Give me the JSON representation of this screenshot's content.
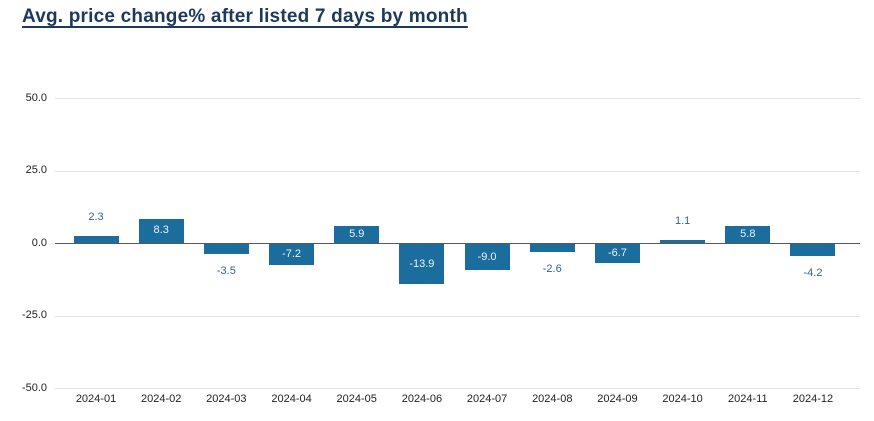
{
  "title": "Avg. price change% after listed 7 days by month",
  "chart_data": {
    "type": "bar",
    "title": "Avg. price change% after listed 7 days by month",
    "categories": [
      "2024-01",
      "2024-02",
      "2024-03",
      "2024-04",
      "2024-05",
      "2024-06",
      "2024-07",
      "2024-08",
      "2024-09",
      "2024-10",
      "2024-11",
      "2024-12"
    ],
    "values": [
      2.3,
      8.3,
      -3.5,
      -7.2,
      5.9,
      -13.9,
      -9.0,
      -2.6,
      -6.7,
      1.1,
      5.8,
      -4.2
    ],
    "value_labels": [
      "2.3",
      "8.3",
      "-3.5",
      "-7.2",
      "5.9",
      "-13.9",
      "-9.0",
      "-2.6",
      "-6.7",
      "1.1",
      "5.8",
      "-4.2"
    ],
    "yticks": [
      {
        "value": 50,
        "label": "50.0"
      },
      {
        "value": 25,
        "label": "25.0"
      },
      {
        "value": 0,
        "label": "0.0"
      },
      {
        "value": -25,
        "label": "-25.0"
      },
      {
        "value": -50,
        "label": "-50.0"
      }
    ],
    "ylim": [
      -50,
      50
    ],
    "xlabel": "",
    "ylabel": "",
    "grid": true,
    "legend": false,
    "colors": {
      "bar": "#1b6d9e",
      "label_inside": "#e9f1f8",
      "label_outside": "#2f6690",
      "title": "#1c3a5c",
      "axis_text": "#222222",
      "gridline": "#e3e3e3",
      "zero_line": "#5a5a5a"
    }
  }
}
